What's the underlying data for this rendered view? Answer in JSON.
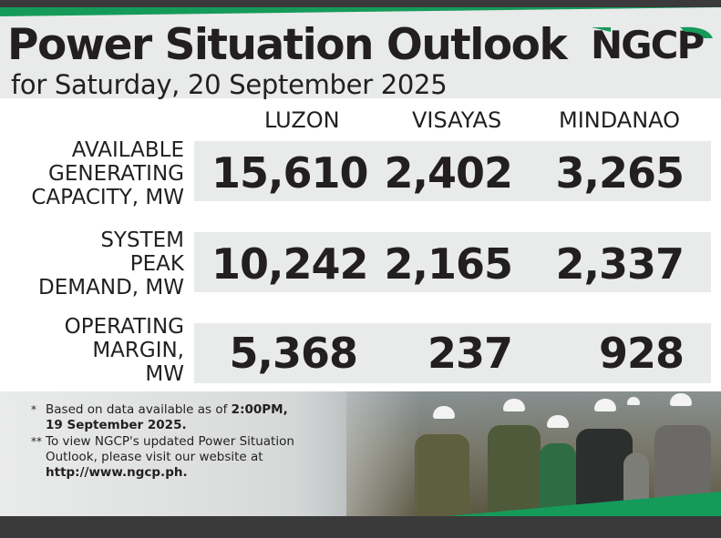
{
  "header": {
    "title": "Power Situation Outlook",
    "subtitle": "for Saturday, 20 September 2025",
    "logo_text": "NGCP"
  },
  "columns": [
    "LUZON",
    "VISAYAS",
    "MINDANAO"
  ],
  "rows": [
    {
      "label_lines": [
        "AVAILABLE",
        "GENERATING",
        "CAPACITY, MW"
      ],
      "values": [
        "15,610",
        "2,402",
        "3,265"
      ]
    },
    {
      "label_lines": [
        "SYSTEM",
        "PEAK",
        "DEMAND, MW"
      ],
      "values": [
        "10,242",
        "2,165",
        "2,337"
      ]
    },
    {
      "label_lines": [
        "OPERATING",
        "MARGIN,",
        "MW"
      ],
      "values": [
        "5,368",
        "237",
        "928"
      ]
    }
  ],
  "notes": [
    {
      "mark": "*",
      "text_before": "Based on data available as of ",
      "bold_1": "2:00PM,",
      "bold_2": "19 September 2025."
    },
    {
      "mark": "**",
      "text_1": "To view NGCP's updated Power Situation",
      "text_2": "Outlook, please visit our website at",
      "bold_url": "http://www.ngcp.ph."
    }
  ],
  "colors": {
    "accent_green": "#159a5a",
    "dark_bar": "#3a3a3a",
    "panel_gray": "#e9eaea",
    "text": "#231f20"
  }
}
